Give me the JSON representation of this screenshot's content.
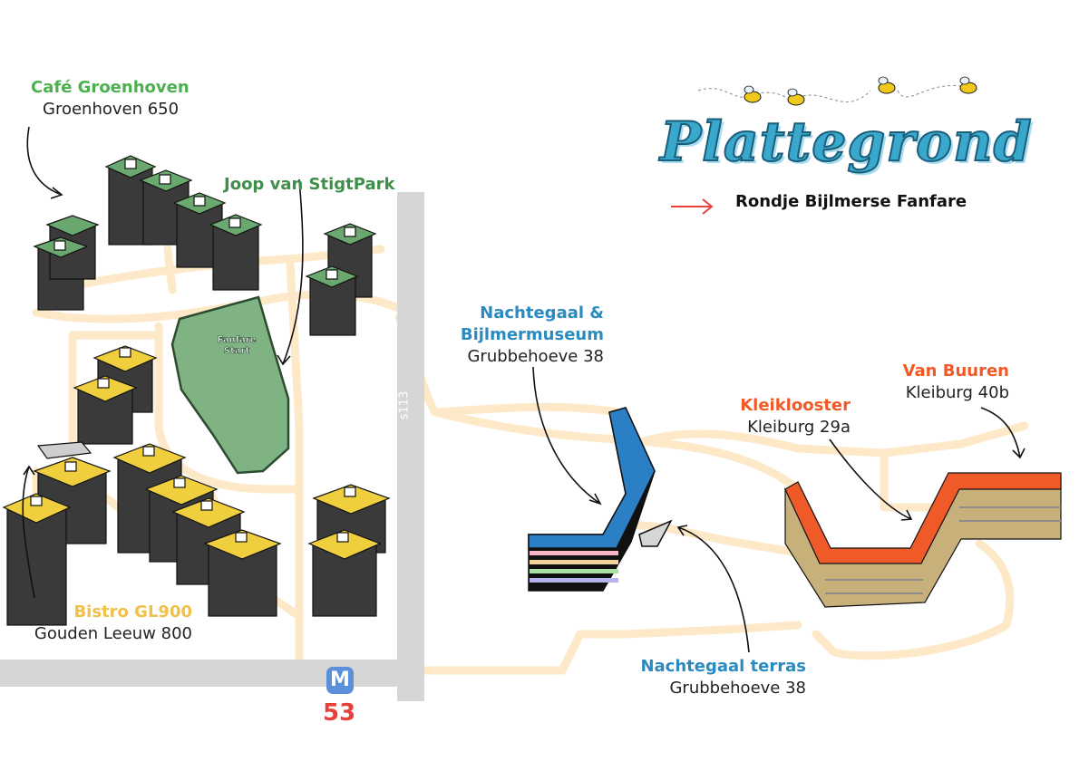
{
  "title": "Plattegrond",
  "legend": {
    "label": "Rondje Bijlmerse Fanfare",
    "color": "#e8403b"
  },
  "start_label": "Fanfare\nStart",
  "road_label": "s113",
  "metro": {
    "symbol": "M",
    "line": "53"
  },
  "locations": [
    {
      "id": "cafe-groenhoven",
      "name": "Café Groenhoven",
      "address": "Groenhoven 650",
      "color": "#4caf50"
    },
    {
      "id": "joop-van-stigtpark",
      "name": "Joop van StigtPark",
      "address": "",
      "color": "#3f8f4a"
    },
    {
      "id": "nachtegaal-bijlmermuseum",
      "name": "Nachtegaal & Bijlmermuseum",
      "name_lines": [
        "Nachtegaal &",
        "Bijlmermuseum"
      ],
      "address": "Grubbehoeve 38",
      "color": "#2b8bc0"
    },
    {
      "id": "van-buuren",
      "name": "Van Buuren",
      "address": "Kleiburg 40b",
      "color": "#f05a28"
    },
    {
      "id": "kleiklooster",
      "name": "Kleiklooster",
      "address": "Kleiburg 29a",
      "color": "#f05a28"
    },
    {
      "id": "bistro-gl900",
      "name": "Bistro GL900",
      "address": "Gouden Leeuw 800",
      "color": "#efc14a"
    },
    {
      "id": "nachtegaal-terras",
      "name": "Nachtegaal terras",
      "address": "Grubbehoeve 38",
      "color": "#2b8bc0"
    }
  ],
  "colors": {
    "path": "#fde9c8",
    "road": "#d6d6d6",
    "park": "#7fb384",
    "green_roof": "#6aa86f",
    "yellow_roof": "#f0cf3e",
    "kleiburg_roof": "#f05a28",
    "nachtegaal_roof": "#2b7fc4"
  }
}
